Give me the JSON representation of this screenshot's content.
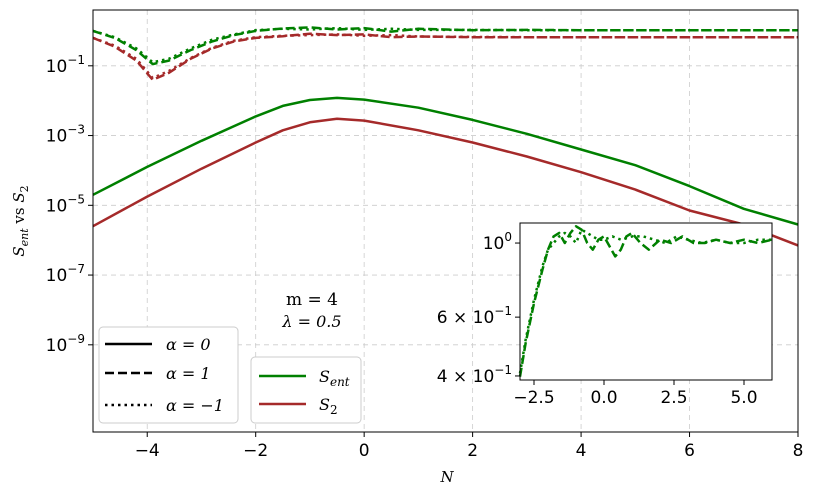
{
  "chart_data": [
    {
      "type": "line",
      "title": "",
      "xlabel": "N",
      "ylabel": "S_ent vs S_2",
      "xlim": [
        -5,
        8
      ],
      "ylim_log10": [
        -11.5,
        0.6
      ],
      "yscale": "log",
      "grid": true,
      "xticks": [
        "−4",
        "−2",
        "0",
        "2",
        "4",
        "6",
        "8"
      ],
      "xtick_values": [
        -4,
        -2,
        0,
        2,
        4,
        6,
        8
      ],
      "yticks": [
        "10",
        "10",
        "10",
        "10",
        "10",
        "10"
      ],
      "ytick_exponents": [
        "−1",
        "−3",
        "−5",
        "−7",
        "−9"
      ],
      "ytick_values_log10": [
        -1,
        -3,
        -5,
        -7,
        -9
      ],
      "annotation": {
        "line1": "m = 4",
        "line2": "λ = 0.5"
      },
      "colors": {
        "S_ent": "#008000",
        "S_2": "#a52a2a"
      },
      "legend_styles": {
        "placement": "lower-left",
        "entries": [
          {
            "label": "α = 0",
            "style": "solid"
          },
          {
            "label": "α = 1",
            "style": "dashed"
          },
          {
            "label": "α = −1",
            "style": "dotted"
          }
        ]
      },
      "legend_quantities": {
        "placement": "lower-left",
        "entries": [
          {
            "label": "S_ent",
            "color": "#008000"
          },
          {
            "label": "S_2",
            "color": "#a52a2a"
          }
        ]
      },
      "series": [
        {
          "quantity": "S_ent",
          "alpha": 0,
          "style": "solid",
          "color": "#008000",
          "x": [
            -5,
            -4,
            -3,
            -2,
            -1.5,
            -1,
            -0.5,
            0,
            1,
            2,
            3,
            4,
            5,
            6,
            7,
            8
          ],
          "log10_y": [
            -4.7,
            -3.9,
            -3.15,
            -2.45,
            -2.15,
            -1.98,
            -1.92,
            -1.97,
            -2.2,
            -2.55,
            -2.95,
            -3.4,
            -3.85,
            -4.45,
            -5.1,
            -5.55
          ]
        },
        {
          "quantity": "S_2",
          "alpha": 0,
          "style": "solid",
          "color": "#a52a2a",
          "x": [
            -5,
            -4,
            -3,
            -2,
            -1.5,
            -1,
            -0.5,
            0,
            1,
            2,
            3,
            4,
            5,
            6,
            7,
            8
          ],
          "log10_y": [
            -5.6,
            -4.75,
            -3.95,
            -3.2,
            -2.85,
            -2.62,
            -2.52,
            -2.57,
            -2.85,
            -3.2,
            -3.6,
            -4.05,
            -4.55,
            -5.15,
            -5.55,
            -6.15
          ]
        },
        {
          "quantity": "S_ent",
          "alpha": 1,
          "style": "dashed",
          "color": "#008000",
          "x": [
            -5,
            -4.6,
            -4.2,
            -3.9,
            -3.6,
            -3.2,
            -2.8,
            -2.4,
            -2,
            -1.5,
            -1,
            -0.5,
            0,
            0.5,
            1,
            2,
            3,
            4,
            6,
            8
          ],
          "log10_y": [
            0.0,
            -0.2,
            -0.55,
            -0.95,
            -0.85,
            -0.55,
            -0.3,
            -0.12,
            0.0,
            0.07,
            0.1,
            0.04,
            0.08,
            -0.02,
            0.06,
            0.02,
            0.03,
            0.02,
            0.02,
            0.02
          ]
        },
        {
          "quantity": "S_ent",
          "alpha": -1,
          "style": "dotted",
          "color": "#008000",
          "x": [
            -5,
            -4.6,
            -4.2,
            -3.9,
            -3.6,
            -3.2,
            -2.8,
            -2.4,
            -2,
            -1.5,
            -1,
            -0.5,
            0,
            0.5,
            1,
            2,
            3,
            4,
            6,
            8
          ],
          "log10_y": [
            0.0,
            -0.18,
            -0.5,
            -0.9,
            -0.8,
            -0.5,
            -0.25,
            -0.1,
            0.02,
            0.06,
            0.04,
            0.08,
            0.03,
            0.06,
            0.03,
            0.03,
            0.02,
            0.02,
            0.02,
            0.02
          ]
        },
        {
          "quantity": "S_2",
          "alpha": 1,
          "style": "dashed",
          "color": "#a52a2a",
          "x": [
            -5,
            -4.6,
            -4.2,
            -3.9,
            -3.6,
            -3.2,
            -2.8,
            -2.4,
            -2,
            -1.5,
            -1,
            -0.5,
            0,
            0.5,
            1,
            2,
            3,
            4,
            6,
            8
          ],
          "log10_y": [
            -0.2,
            -0.45,
            -0.85,
            -1.4,
            -1.2,
            -0.8,
            -0.5,
            -0.3,
            -0.2,
            -0.15,
            -0.08,
            -0.12,
            -0.1,
            -0.18,
            -0.16,
            -0.18,
            -0.18,
            -0.18,
            -0.18,
            -0.18
          ]
        },
        {
          "quantity": "S_2",
          "alpha": -1,
          "style": "dotted",
          "color": "#a52a2a",
          "x": [
            -5,
            -4.6,
            -4.2,
            -3.9,
            -3.6,
            -3.2,
            -2.8,
            -2.4,
            -2,
            -1.5,
            -1,
            -0.5,
            0,
            0.5,
            1,
            2,
            3,
            4,
            6,
            8
          ],
          "log10_y": [
            -0.2,
            -0.42,
            -0.8,
            -1.35,
            -1.15,
            -0.78,
            -0.48,
            -0.28,
            -0.18,
            -0.14,
            -0.12,
            -0.1,
            -0.14,
            -0.12,
            -0.16,
            -0.17,
            -0.18,
            -0.18,
            -0.18,
            -0.18
          ]
        }
      ]
    },
    {
      "type": "line",
      "role": "inset",
      "xlim": [
        -3,
        6
      ],
      "ylim_log10": [
        -0.41,
        0.06
      ],
      "yscale": "log",
      "xticks": [
        "−2.5",
        "0.0",
        "2.5",
        "5.0"
      ],
      "xtick_values": [
        -2.5,
        0.0,
        2.5,
        5.0
      ],
      "yticks": [
        {
          "mantissa": "",
          "base": "10",
          "exp": "0",
          "value_log10": 0
        },
        {
          "mantissa": "6 × ",
          "base": "10",
          "exp": "−1",
          "value_log10": -0.2218
        },
        {
          "mantissa": "4 × ",
          "base": "10",
          "exp": "−1",
          "value_log10": -0.3979
        }
      ],
      "series": [
        {
          "quantity": "S_ent",
          "alpha": 1,
          "style": "dashed",
          "color": "#008000",
          "x": [
            -3,
            -2.8,
            -2.5,
            -2.2,
            -2.0,
            -1.8,
            -1.6,
            -1.4,
            -1.2,
            -1.0,
            -0.8,
            -0.6,
            -0.4,
            -0.2,
            0,
            0.2,
            0.4,
            0.6,
            0.8,
            1.0,
            1.3,
            1.6,
            2.0,
            2.4,
            2.8,
            3.2,
            3.6,
            4.0,
            4.5,
            5.0,
            5.5,
            6.0
          ],
          "log10_y": [
            -0.4,
            -0.3,
            -0.18,
            -0.08,
            -0.02,
            0.02,
            0.03,
            0.0,
            0.03,
            0.05,
            0.04,
            0.0,
            -0.02,
            0.01,
            0.02,
            -0.01,
            -0.04,
            -0.02,
            0.02,
            0.03,
            0.0,
            -0.02,
            0.01,
            0.0,
            0.02,
            0.0,
            0.0,
            0.01,
            0.0,
            0.01,
            0.0,
            0.01
          ]
        },
        {
          "quantity": "S_ent",
          "alpha": -1,
          "style": "dotted",
          "color": "#008000",
          "x": [
            -3,
            -2.8,
            -2.5,
            -2.2,
            -2.0,
            -1.8,
            -1.6,
            -1.4,
            -1.2,
            -1.0,
            -0.8,
            -0.6,
            -0.4,
            -0.2,
            0,
            0.3,
            0.6,
            1.0,
            1.4,
            1.8,
            2.2,
            2.6,
            3.0,
            3.5,
            4.0,
            4.5,
            5.0,
            5.5,
            6.0
          ],
          "log10_y": [
            -0.39,
            -0.29,
            -0.17,
            -0.07,
            -0.02,
            0.0,
            0.02,
            0.03,
            0.02,
            0.0,
            0.04,
            0.03,
            0.02,
            0.01,
            0.01,
            0.02,
            0.01,
            0.02,
            0.02,
            0.01,
            0.0,
            0.02,
            0.01,
            0.0,
            0.01,
            0.0,
            0.0,
            0.01,
            0.01
          ]
        }
      ]
    }
  ]
}
